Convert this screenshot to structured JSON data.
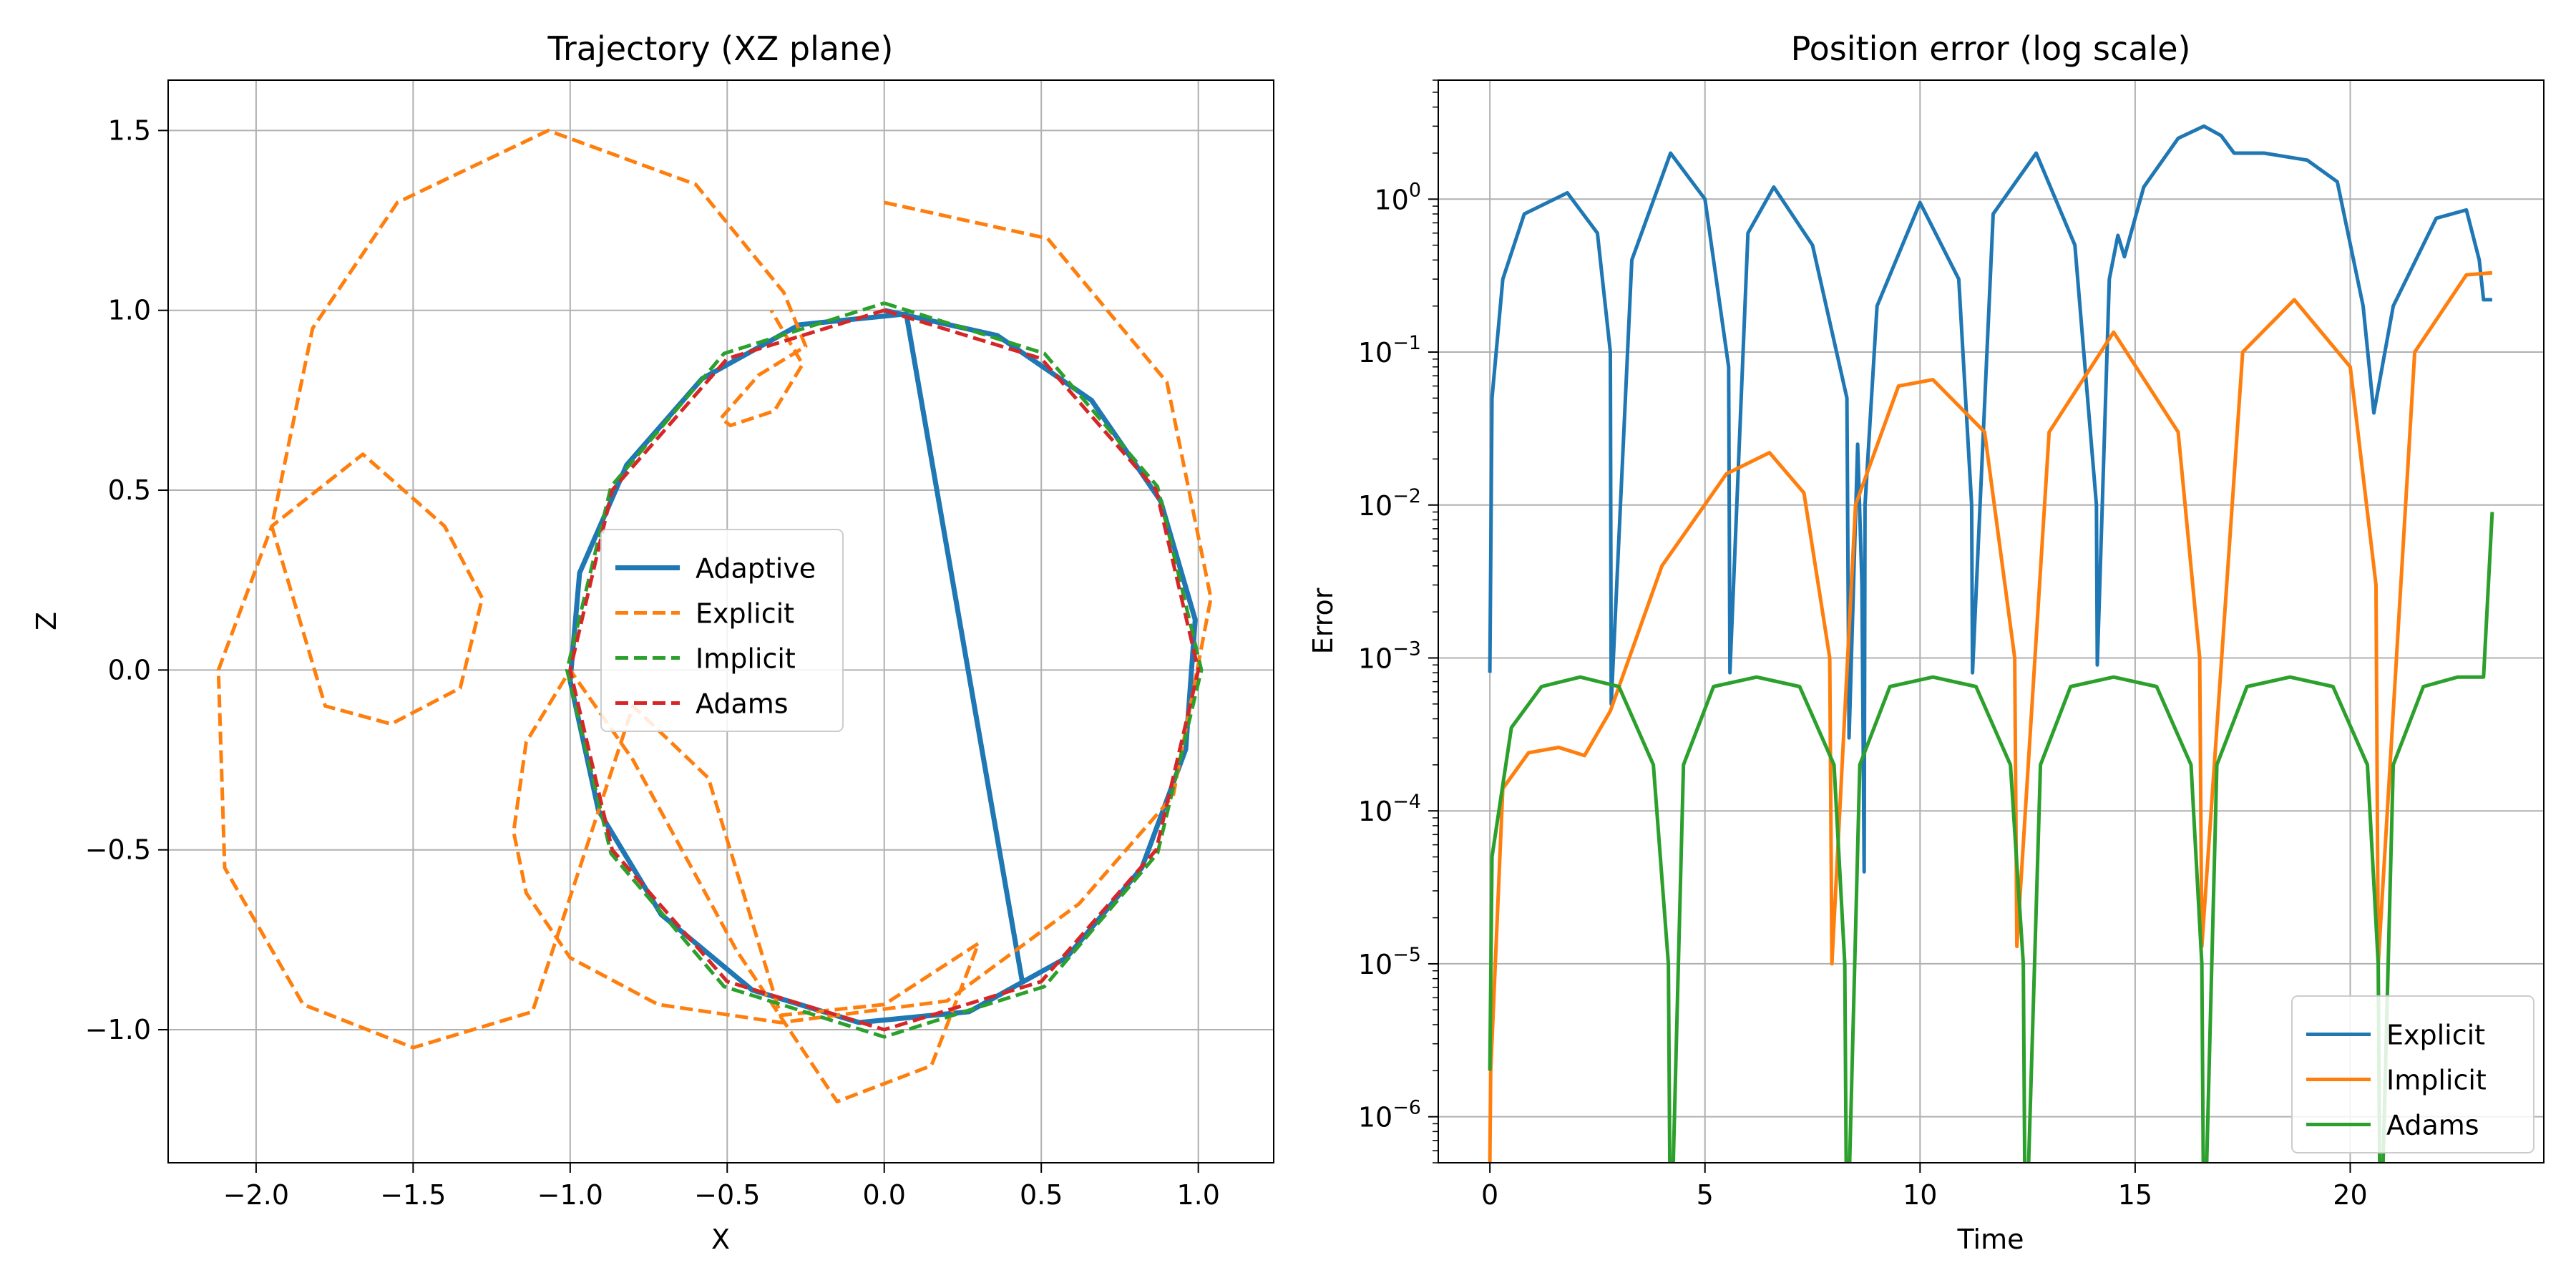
{
  "chart_data": [
    {
      "type": "line",
      "title": "Trajectory (XZ plane)",
      "xlabel": "X",
      "ylabel": "Z",
      "xlim": [
        -2.28,
        1.24
      ],
      "ylim": [
        -1.37,
        1.64
      ],
      "xticks": [
        -2.0,
        -1.5,
        -1.0,
        -0.5,
        0.0,
        0.5,
        1.0
      ],
      "yticks": [
        -1.0,
        -0.5,
        0.0,
        0.5,
        1.0,
        1.5
      ],
      "xtick_labels": [
        "−2.0",
        "−1.5",
        "−1.0",
        "−0.5",
        "0.0",
        "0.5",
        "1.0"
      ],
      "ytick_labels": [
        "−1.0",
        "−0.5",
        "0.0",
        "0.5",
        "1.0",
        "1.5"
      ],
      "grid": true,
      "legend_position": "center",
      "series": [
        {
          "name": "Adaptive",
          "color": "#1f77b4",
          "style": "solid",
          "x": [
            0.0,
            0.36,
            0.66,
            0.88,
            0.99,
            0.96,
            0.82,
            0.58,
            0.27,
            -0.08,
            -0.42,
            -0.71,
            -0.91,
            -1.0,
            -0.97,
            -0.82,
            -0.58,
            -0.27,
            0.07,
            0.44
          ],
          "y": [
            1.0,
            0.93,
            0.75,
            0.47,
            0.14,
            -0.22,
            -0.55,
            -0.8,
            -0.95,
            -0.98,
            -0.89,
            -0.68,
            -0.39,
            -0.03,
            0.27,
            0.57,
            0.81,
            0.96,
            0.99,
            -0.87
          ]
        },
        {
          "name": "Explicit",
          "color": "#ff7f0e",
          "style": "dashed",
          "x": [
            0.0,
            0.52,
            0.9,
            1.04,
            0.92,
            0.62,
            0.2,
            -0.33,
            -0.72,
            -1.0,
            -1.14,
            -1.18,
            -1.14,
            -1.0,
            -0.8,
            -0.47,
            -0.15,
            0.15,
            0.3,
            0.0,
            -0.33,
            -0.56,
            -0.8,
            -1.12,
            -1.5,
            -1.85,
            -2.1,
            -2.12,
            -1.95,
            -1.66,
            -1.4,
            -1.28,
            -1.35,
            -1.57,
            -1.78,
            -1.95,
            -1.82,
            -1.55,
            -1.07,
            -0.6,
            -0.32,
            -0.25,
            -0.4,
            -0.52,
            -0.49,
            -0.35,
            -0.26,
            -0.36
          ],
          "y": [
            1.3,
            1.2,
            0.8,
            0.2,
            -0.35,
            -0.65,
            -0.92,
            -0.98,
            -0.93,
            -0.8,
            -0.62,
            -0.45,
            -0.2,
            0.0,
            -0.25,
            -0.78,
            -1.2,
            -1.1,
            -0.76,
            -0.93,
            -0.96,
            -0.3,
            -0.1,
            -0.95,
            -1.05,
            -0.93,
            -0.55,
            0.0,
            0.4,
            0.6,
            0.4,
            0.2,
            -0.05,
            -0.15,
            -0.1,
            0.4,
            0.95,
            1.3,
            1.5,
            1.35,
            1.05,
            0.9,
            0.82,
            0.7,
            0.68,
            0.72,
            0.85,
            1.0
          ]
        },
        {
          "name": "Implicit",
          "color": "#2ca02c",
          "style": "dashed",
          "x": [
            0.0,
            0.51,
            0.87,
            1.01,
            0.87,
            0.51,
            0.0,
            -0.51,
            -0.87,
            -1.01,
            -0.87,
            -0.51,
            0.0
          ],
          "y": [
            1.02,
            0.88,
            0.51,
            0.0,
            -0.51,
            -0.88,
            -1.02,
            -0.88,
            -0.51,
            0.0,
            0.51,
            0.88,
            1.02
          ]
        },
        {
          "name": "Adams",
          "color": "#d62728",
          "style": "dashed",
          "x": [
            0.0,
            0.5,
            0.866,
            1.0,
            0.866,
            0.5,
            0.0,
            -0.5,
            -0.866,
            -1.0,
            -0.866,
            -0.5,
            0.0
          ],
          "y": [
            1.0,
            0.866,
            0.5,
            0.0,
            -0.5,
            -0.866,
            -1.0,
            -0.866,
            -0.5,
            0.0,
            0.5,
            0.866,
            1.0
          ]
        }
      ]
    },
    {
      "type": "line",
      "title": "Position error (log scale)",
      "xlabel": "Time",
      "ylabel": "Error",
      "yscale": "log",
      "xlim": [
        -1.2,
        24.5
      ],
      "ylim": [
        5e-07,
        6
      ],
      "xticks": [
        0,
        5,
        10,
        15,
        20
      ],
      "xtick_labels": [
        "0",
        "5",
        "10",
        "15",
        "20"
      ],
      "yticks": [
        1e-06,
        1e-05,
        0.0001,
        0.001,
        0.01,
        0.1,
        1
      ],
      "ytick_bases": [
        "10",
        "10",
        "10",
        "10",
        "10",
        "10",
        "10"
      ],
      "ytick_exponents": [
        "−6",
        "−5",
        "−4",
        "−3",
        "−2",
        "−1",
        "0"
      ],
      "grid": true,
      "legend_position": "lower right",
      "series": [
        {
          "name": "Explicit",
          "color": "#1f77b4",
          "style": "solid",
          "x": [
            0.0,
            0.05,
            0.3,
            0.8,
            1.8,
            2.5,
            2.8,
            2.82,
            3.3,
            4.2,
            5.0,
            5.55,
            5.58,
            6.0,
            6.6,
            7.5,
            8.3,
            8.35,
            8.55,
            8.65,
            8.7,
            8.72,
            9.0,
            10.0,
            10.9,
            11.2,
            11.22,
            11.7,
            12.7,
            13.6,
            14.1,
            14.12,
            14.4,
            14.6,
            14.75,
            15.2,
            16.0,
            16.6,
            17.0,
            17.3,
            18.0,
            19.0,
            19.7,
            20.3,
            20.55,
            21.0,
            22.0,
            22.7,
            23.0,
            23.1,
            23.3
          ],
          "y": [
            0.0008,
            0.05,
            0.3,
            0.8,
            1.1,
            0.6,
            0.1,
            0.0005,
            0.4,
            2.0,
            1.0,
            0.08,
            0.0008,
            0.6,
            1.2,
            0.5,
            0.05,
            0.0003,
            0.025,
            0.003,
            4e-05,
            0.01,
            0.2,
            0.95,
            0.3,
            0.01,
            0.0008,
            0.8,
            2.0,
            0.5,
            0.01,
            0.0009,
            0.3,
            0.58,
            0.42,
            1.2,
            2.5,
            3.0,
            2.6,
            2.0,
            2.0,
            1.8,
            1.3,
            0.2,
            0.04,
            0.2,
            0.75,
            0.85,
            0.4,
            0.22,
            0.22
          ]
        },
        {
          "name": "Implicit",
          "color": "#ff7f0e",
          "style": "solid",
          "x": [
            0.0,
            0.02,
            0.3,
            0.9,
            1.6,
            2.2,
            2.8,
            4.0,
            5.5,
            6.5,
            7.3,
            7.9,
            7.95,
            8.5,
            9.5,
            10.3,
            11.5,
            12.2,
            12.25,
            13.0,
            14.5,
            16.0,
            16.5,
            16.55,
            17.5,
            18.7,
            20.0,
            20.6,
            20.65,
            21.5,
            22.7,
            23.3
          ],
          "y": [
            5e-07,
            2e-06,
            0.00014,
            0.00024,
            0.00026,
            0.00023,
            0.00045,
            0.004,
            0.016,
            0.022,
            0.012,
            0.001,
            1e-05,
            0.01,
            0.06,
            0.066,
            0.03,
            0.001,
            1.3e-05,
            0.03,
            0.135,
            0.03,
            0.001,
            1.3e-05,
            0.1,
            0.22,
            0.08,
            0.003,
            1e-05,
            0.1,
            0.32,
            0.33
          ]
        },
        {
          "name": "Adams",
          "color": "#2ca02c",
          "style": "solid",
          "x": [
            0.0,
            0.05,
            0.5,
            1.2,
            2.1,
            3.0,
            3.8,
            4.15,
            4.2,
            4.5,
            5.2,
            6.2,
            7.2,
            8.0,
            8.25,
            8.3,
            8.6,
            9.3,
            10.3,
            11.3,
            12.1,
            12.4,
            12.45,
            12.8,
            13.5,
            14.5,
            15.5,
            16.3,
            16.55,
            16.6,
            16.9,
            17.6,
            18.6,
            19.6,
            20.4,
            20.65,
            20.7,
            21.0,
            21.7,
            22.5,
            23.0,
            23.1,
            23.3
          ],
          "y": [
            2e-06,
            5e-05,
            0.00035,
            0.00065,
            0.00075,
            0.00065,
            0.0002,
            1e-05,
            1e-07,
            0.0002,
            0.00065,
            0.00075,
            0.00065,
            0.0002,
            1e-05,
            1e-07,
            0.0002,
            0.00065,
            0.00075,
            0.00065,
            0.0002,
            1e-05,
            1e-07,
            0.0002,
            0.00065,
            0.00075,
            0.00065,
            0.0002,
            1e-05,
            1e-07,
            0.0002,
            0.00065,
            0.00075,
            0.00065,
            0.0002,
            1e-05,
            1e-07,
            0.0002,
            0.00065,
            0.00075,
            0.00075,
            0.00075,
            0.009
          ]
        }
      ]
    }
  ]
}
